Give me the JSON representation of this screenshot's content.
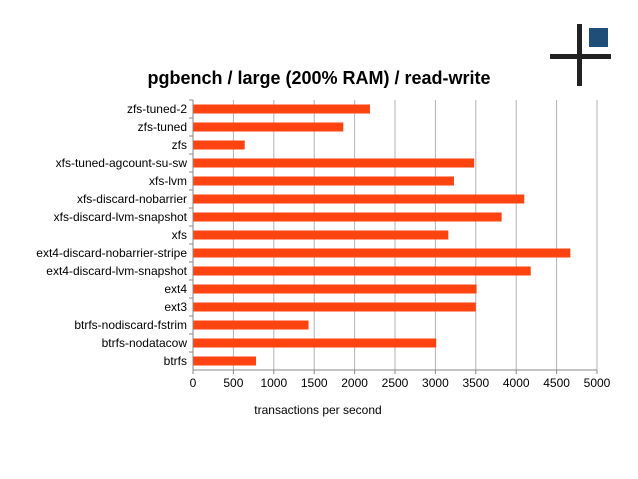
{
  "chart_data": {
    "type": "bar",
    "orientation": "horizontal",
    "title": "pgbench / large (200% RAM) / read-write",
    "xlabel": "transactions per second",
    "ylabel": "",
    "xlim": [
      0,
      5000
    ],
    "xticks": [
      0,
      500,
      1000,
      1500,
      2000,
      2500,
      3000,
      3500,
      4000,
      4500,
      5000
    ],
    "grid": true,
    "legend": "none",
    "bar_color": "#ff4411",
    "categories": [
      "zfs-tuned-2",
      "zfs-tuned",
      "zfs",
      "xfs-tuned-agcount-su-sw",
      "xfs-lvm",
      "xfs-discard-nobarrier",
      "xfs-discard-lvm-snapshot",
      "xfs",
      "ext4-discard-nobarrier-stripe",
      "ext4-discard-lvm-snapshot",
      "ext4",
      "ext3",
      "btrfs-nodiscard-fstrim",
      "btrfs-nodatacow",
      "btrfs"
    ],
    "values": [
      2190,
      1860,
      640,
      3480,
      3230,
      4100,
      3820,
      3160,
      4670,
      4180,
      3510,
      3500,
      1430,
      3010,
      780
    ]
  },
  "logo": {
    "cross_color": "#222222",
    "square_color": "#1f4e79"
  }
}
